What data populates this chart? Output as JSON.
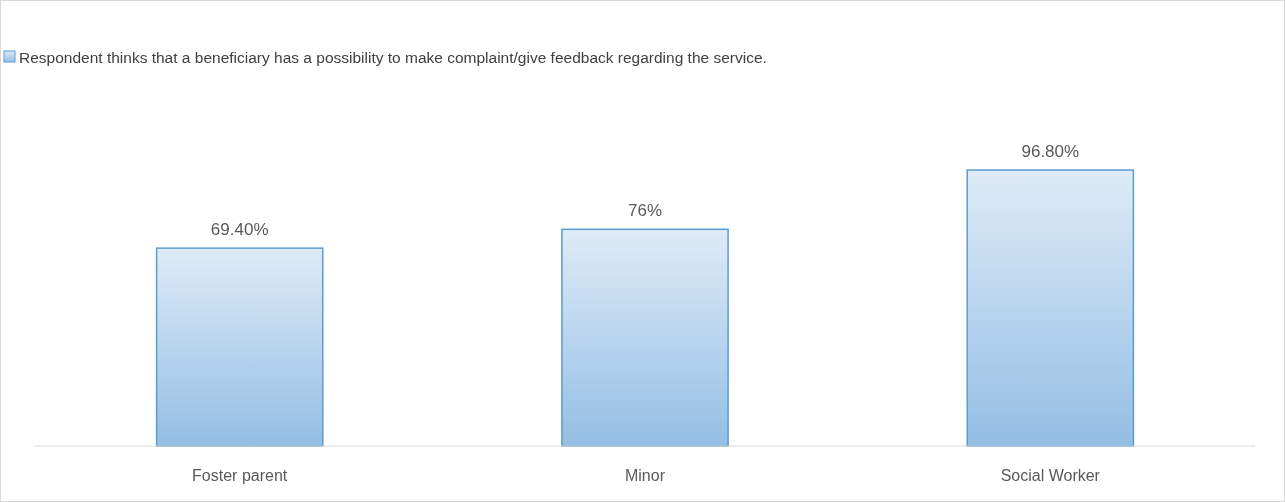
{
  "chart_data": {
    "type": "bar",
    "categories": [
      "Foster parent",
      "Minor",
      "Social Worker"
    ],
    "series": [
      {
        "name": "Respondent thinks that a beneficiary has a possibility to make complaint/give feedback regarding the service.",
        "color": "#5b9bd5",
        "values": [
          69.4,
          76,
          96.8
        ],
        "value_labels": [
          "69.40%",
          "76%",
          "96.80%"
        ]
      }
    ],
    "tick_labels": "x",
    "legend": "top",
    "grid": false
  }
}
